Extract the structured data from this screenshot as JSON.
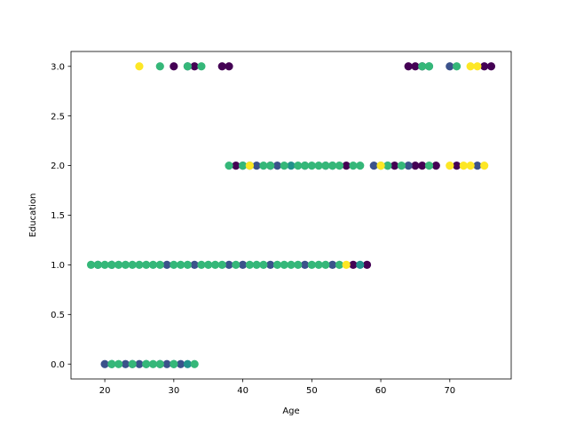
{
  "chart_data": {
    "type": "scatter",
    "title": "",
    "xlabel": "Age",
    "ylabel": "Education",
    "xlim": [
      15.1,
      78.9
    ],
    "ylim": [
      -0.15,
      3.15
    ],
    "x_ticks": [
      20,
      30,
      40,
      50,
      60,
      70
    ],
    "y_ticks": [
      0.0,
      0.5,
      1.0,
      1.5,
      2.0,
      2.5,
      3.0
    ],
    "x_tick_labels": [
      "20",
      "30",
      "40",
      "50",
      "60",
      "70"
    ],
    "y_tick_labels": [
      "0.0",
      "0.5",
      "1.0",
      "1.5",
      "2.0",
      "2.5",
      "3.0"
    ],
    "grid": false,
    "legend": "none",
    "colors": {
      "purple": "#440154",
      "blue": "#3b528b",
      "teal": "#21918c",
      "green": "#35b779",
      "yellow": "#fde725"
    },
    "series": [
      {
        "color": "purple",
        "x": [
          30,
          33,
          37,
          38,
          64,
          65,
          66,
          75,
          76,
          39,
          44,
          55,
          62,
          65,
          66,
          68,
          71,
          56,
          58
        ],
        "y": [
          3,
          3,
          3,
          3,
          3,
          3,
          3,
          3,
          3,
          2,
          2,
          2,
          2,
          2,
          2,
          2,
          2,
          1,
          1
        ]
      },
      {
        "color": "blue",
        "x": [
          32,
          70,
          40,
          42,
          45,
          49,
          52,
          59,
          64,
          74,
          19,
          21,
          29,
          33,
          38,
          40,
          44,
          49,
          53,
          20,
          23,
          24,
          25,
          28,
          29,
          31
        ],
        "y": [
          3,
          3,
          2,
          2,
          2,
          2,
          2,
          2,
          2,
          2,
          1,
          1,
          1,
          1,
          1,
          1,
          1,
          1,
          1,
          0,
          0,
          0,
          0,
          0,
          0,
          0
        ]
      },
      {
        "color": "teal",
        "x": [
          67,
          47,
          53,
          61,
          57,
          21,
          26,
          30,
          32
        ],
        "y": [
          3,
          2,
          2,
          2,
          1,
          0,
          0,
          0,
          0
        ]
      },
      {
        "color": "green",
        "x": [
          28,
          32,
          34,
          66,
          67,
          71,
          38,
          40,
          41,
          43,
          44,
          46,
          48,
          49,
          50,
          51,
          52,
          53,
          54,
          56,
          57,
          60,
          61,
          63,
          67,
          18,
          19,
          20,
          21,
          22,
          23,
          24,
          25,
          26,
          27,
          28,
          30,
          31,
          32,
          34,
          35,
          36,
          37,
          39,
          41,
          42,
          43,
          45,
          46,
          47,
          48,
          50,
          51,
          52,
          54,
          21,
          22,
          24,
          26,
          27,
          28,
          30,
          33
        ],
        "y": [
          3,
          3,
          3,
          3,
          3,
          3,
          2,
          2,
          2,
          2,
          2,
          2,
          2,
          2,
          2,
          2,
          2,
          2,
          2,
          2,
          2,
          2,
          2,
          2,
          2,
          1,
          1,
          1,
          1,
          1,
          1,
          1,
          1,
          1,
          1,
          1,
          1,
          1,
          1,
          1,
          1,
          1,
          1,
          1,
          1,
          1,
          1,
          1,
          1,
          1,
          1,
          1,
          1,
          1,
          1,
          0,
          0,
          0,
          0,
          0,
          0,
          0,
          0
        ]
      },
      {
        "color": "yellow",
        "x": [
          25,
          73,
          74,
          41,
          60,
          70,
          72,
          73,
          75,
          55
        ],
        "y": [
          3,
          3,
          3,
          2,
          2,
          2,
          2,
          2,
          2,
          1
        ]
      }
    ]
  }
}
